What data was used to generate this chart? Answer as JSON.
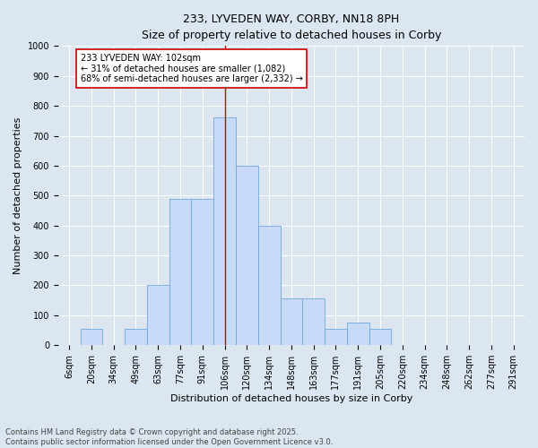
{
  "title": "233, LYVEDEN WAY, CORBY, NN18 8PH",
  "subtitle": "Size of property relative to detached houses in Corby",
  "xlabel": "Distribution of detached houses by size in Corby",
  "ylabel": "Number of detached properties",
  "categories": [
    "6sqm",
    "20sqm",
    "34sqm",
    "49sqm",
    "63sqm",
    "77sqm",
    "91sqm",
    "106sqm",
    "120sqm",
    "134sqm",
    "148sqm",
    "163sqm",
    "177sqm",
    "191sqm",
    "205sqm",
    "220sqm",
    "234sqm",
    "248sqm",
    "262sqm",
    "277sqm",
    "291sqm"
  ],
  "values": [
    0,
    55,
    0,
    55,
    200,
    490,
    490,
    760,
    600,
    400,
    155,
    155,
    55,
    75,
    55,
    0,
    0,
    0,
    0,
    0,
    0
  ],
  "bar_color": "#c9daf8",
  "bar_edge_color": "#6fa8dc",
  "vline_index": 7,
  "vline_color": "#cc0000",
  "annotation_text": "233 LYVEDEN WAY: 102sqm\n← 31% of detached houses are smaller (1,082)\n68% of semi-detached houses are larger (2,332) →",
  "annotation_box_color": "#ffffff",
  "annotation_box_edge": "#cc0000",
  "ylim": [
    0,
    1000
  ],
  "yticks": [
    0,
    100,
    200,
    300,
    400,
    500,
    600,
    700,
    800,
    900,
    1000
  ],
  "background_color": "#dce6f1",
  "plot_bg_color": "#dce6f1",
  "footer_text": "Contains HM Land Registry data © Crown copyright and database right 2025.\nContains public sector information licensed under the Open Government Licence v3.0.",
  "title_fontsize": 9,
  "xlabel_fontsize": 8,
  "ylabel_fontsize": 8,
  "tick_fontsize": 7,
  "annotation_fontsize": 7,
  "footer_fontsize": 6
}
